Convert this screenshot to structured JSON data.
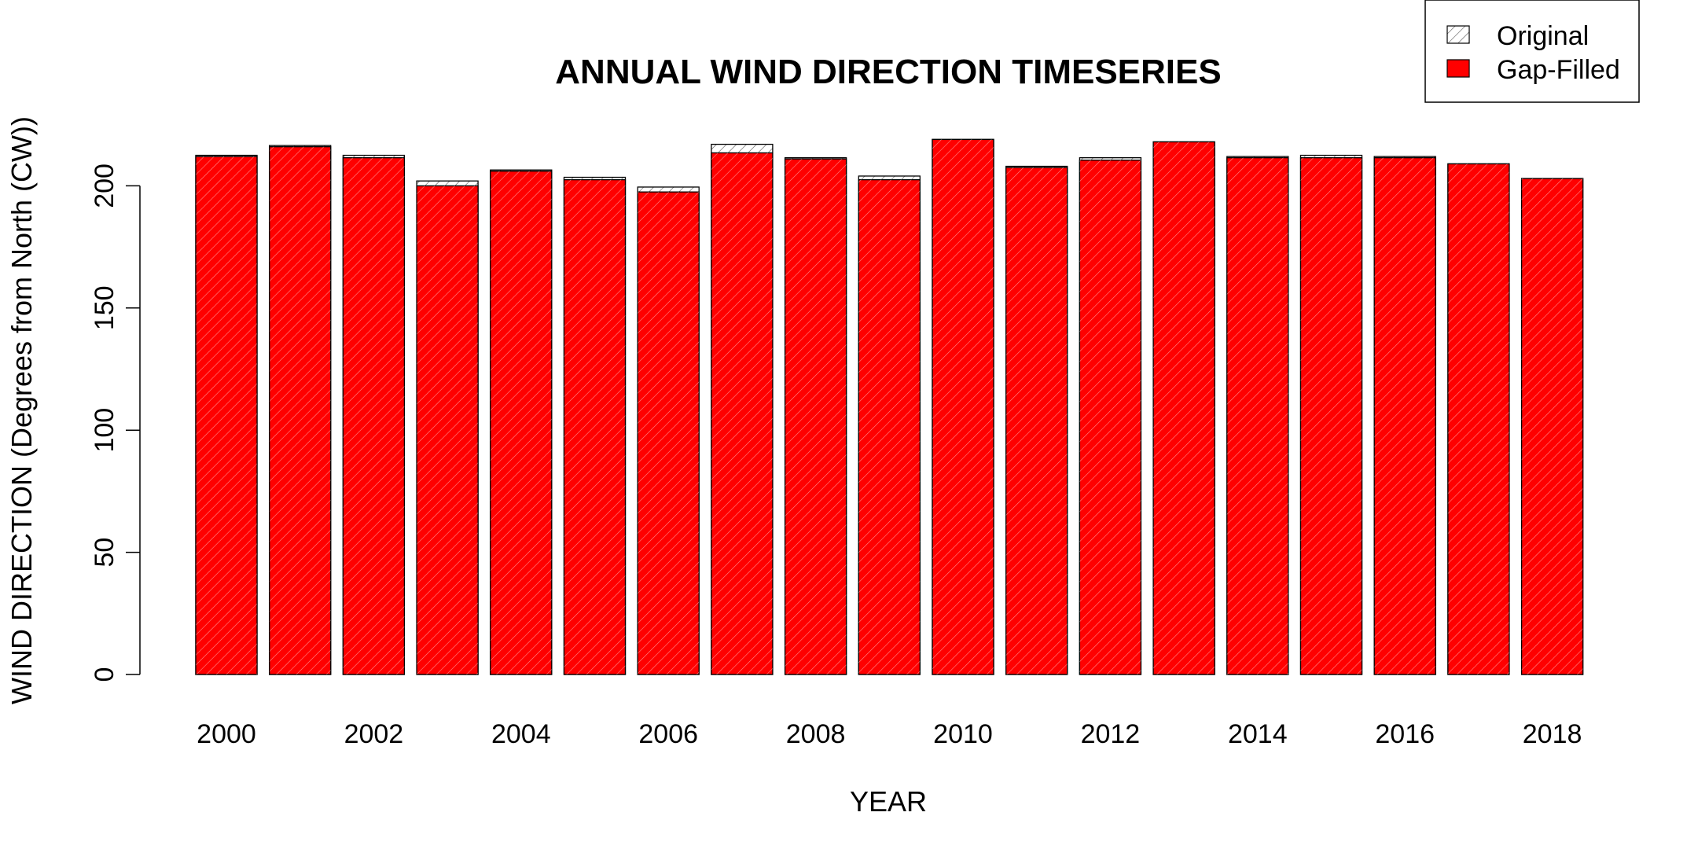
{
  "chart_data": {
    "type": "bar",
    "title": "ANNUAL WIND DIRECTION TIMESERIES",
    "xlabel": "YEAR",
    "ylabel": "WIND DIRECTION (Degrees from North (CW))",
    "ylim": [
      0,
      220
    ],
    "yticks": [
      0,
      50,
      100,
      150,
      200
    ],
    "categories": [
      "2000",
      "2001",
      "2002",
      "2003",
      "2004",
      "2005",
      "2006",
      "2007",
      "2008",
      "2009",
      "2010",
      "2011",
      "2012",
      "2013",
      "2014",
      "2015",
      "2016",
      "2017",
      "2018"
    ],
    "xtick_labels": [
      "2000",
      "2002",
      "2004",
      "2006",
      "2008",
      "2010",
      "2012",
      "2014",
      "2016",
      "2018"
    ],
    "series": [
      {
        "name": "Original",
        "values": [
          212.5,
          216.5,
          212.5,
          202,
          206.5,
          203.5,
          199.5,
          217,
          211.5,
          204,
          219,
          208,
          211.5,
          218,
          212,
          212.5,
          212,
          209,
          203
        ]
      },
      {
        "name": "Gap-Filled",
        "values": [
          212,
          216,
          211.5,
          200,
          206,
          202.5,
          197.5,
          213.5,
          211,
          202.5,
          219,
          207.5,
          210.5,
          218,
          211.5,
          211.5,
          211.5,
          209,
          203
        ]
      }
    ],
    "legend": {
      "position": "top-right",
      "entries": [
        "Original",
        "Gap-Filled"
      ]
    },
    "colors": {
      "gap_filled_fill": "#ff0000",
      "hatch_line": "#ffffff",
      "original_hatch": "#555555",
      "outline": "#000000"
    }
  }
}
